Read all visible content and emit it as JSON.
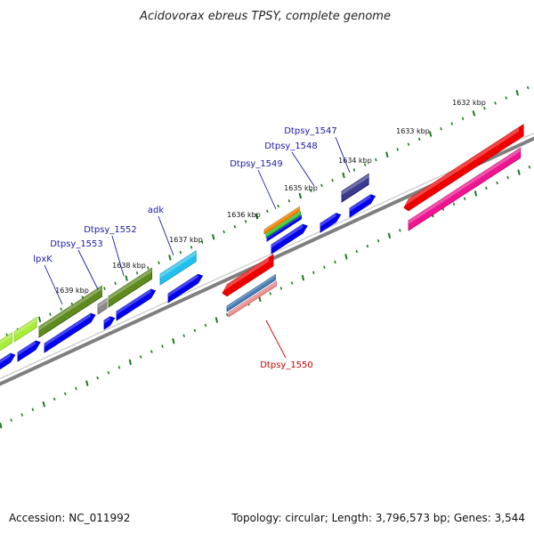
{
  "title": "Acidovorax ebreus TPSY, complete genome",
  "footer": {
    "accession": "Accession: NC_011992",
    "summary": "Topology: circular; Length: 3,796,573 bp; Genes: 3,544"
  },
  "ticks": [
    "1632 kbp",
    "1633 kbp",
    "1634 kbp",
    "1635 kbp",
    "1636 kbp",
    "1637 kbp",
    "1638 kbp",
    "1639 kbp"
  ],
  "gene_labels_forward": [
    "Dtpsy_1547",
    "Dtpsy_1548",
    "Dtpsy_1549",
    "adk",
    "Dtpsy_1552",
    "Dtpsy_1553",
    "lpxK"
  ],
  "gene_labels_reverse": [
    "Dtpsy_1550"
  ],
  "colors": {
    "backbone": "#7f7f7f",
    "tick": "#1b7a1b",
    "cds": "#0000ee",
    "red": "#ee0000",
    "pink": "#ee1590",
    "olive": "#5e8a1f",
    "lime": "#a8ee3a",
    "cyan": "#22c0ee",
    "orange": "#f08a00",
    "green": "#33cc33",
    "navy": "#3b3b8f",
    "steel": "#4a7fb5",
    "salmon": "#f09090"
  }
}
